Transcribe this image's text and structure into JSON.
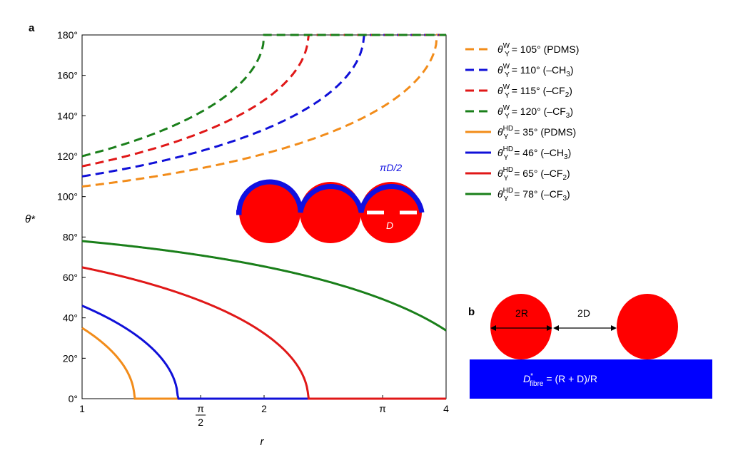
{
  "panel_a": "a",
  "panel_b": "b",
  "chart_data": {
    "type": "line",
    "xlabel": "r",
    "ylabel": "θ*",
    "xlim": [
      1,
      4
    ],
    "ylim": [
      0,
      180
    ],
    "y_ticks": [
      {
        "value": 0,
        "label": "0°"
      },
      {
        "value": 20,
        "label": "20°"
      },
      {
        "value": 40,
        "label": "40°"
      },
      {
        "value": 60,
        "label": "60°"
      },
      {
        "value": 80,
        "label": "80°"
      },
      {
        "value": 100,
        "label": "100°"
      },
      {
        "value": 120,
        "label": "120°"
      },
      {
        "value": 140,
        "label": "140°"
      },
      {
        "value": 160,
        "label": "160°"
      },
      {
        "value": 180,
        "label": "180°"
      }
    ],
    "x_ticks": [
      {
        "value": 1,
        "label": "1"
      },
      {
        "value": 1.5708,
        "label": "π/2",
        "fraction": [
          "π",
          "2"
        ]
      },
      {
        "value": 2,
        "label": "2"
      },
      {
        "value": 3.1416,
        "label": "π"
      },
      {
        "value": 4,
        "label": "4"
      }
    ],
    "legend_position": "right",
    "series": [
      {
        "sup": "W",
        "text": "= 105° (PDMS)",
        "sub_after": "",
        "color": "#f28c1a",
        "dashed": true,
        "theta_y": 105
      },
      {
        "sup": "W",
        "text": "= 110° (–CH",
        "sub_after": "3",
        "color": "#1010d8",
        "dashed": true,
        "theta_y": 110,
        "close": ")"
      },
      {
        "sup": "W",
        "text": "= 115° (–CF",
        "sub_after": "2",
        "color": "#e01818",
        "dashed": true,
        "theta_y": 115,
        "close": ")"
      },
      {
        "sup": "W",
        "text": "= 120° (–CF",
        "sub_after": "3",
        "color": "#1a7f1a",
        "dashed": true,
        "theta_y": 120,
        "close": ")"
      },
      {
        "sup": "HD",
        "text": "= 35° (PDMS)",
        "sub_after": "",
        "color": "#f28c1a",
        "dashed": false,
        "theta_y": 35
      },
      {
        "sup": "HD",
        "text": "= 46° (–CH",
        "sub_after": "3",
        "color": "#1010d8",
        "dashed": false,
        "theta_y": 46,
        "close": ")"
      },
      {
        "sup": "HD",
        "text": "= 65° (–CF",
        "sub_after": "2",
        "color": "#e01818",
        "dashed": false,
        "theta_y": 65,
        "close": ")"
      },
      {
        "sup": "HD",
        "text": "= 78° (–CF",
        "sub_after": "3",
        "color": "#1a7f1a",
        "dashed": false,
        "theta_y": 78,
        "close": ")"
      }
    ],
    "legend_symbol": "θ",
    "legend_sub": "Y"
  },
  "inset": {
    "arc_label": "πD/2",
    "d_label": "D"
  },
  "panel_b_fig": {
    "label_2R": "2R",
    "label_2D": "2D",
    "formula_D": "D",
    "formula_sup": "*",
    "formula_sub": "fibre",
    "formula_rest": " = (R + D)/R",
    "colors": {
      "fiber": "#ff0000",
      "substrate": "#0000ff"
    }
  }
}
